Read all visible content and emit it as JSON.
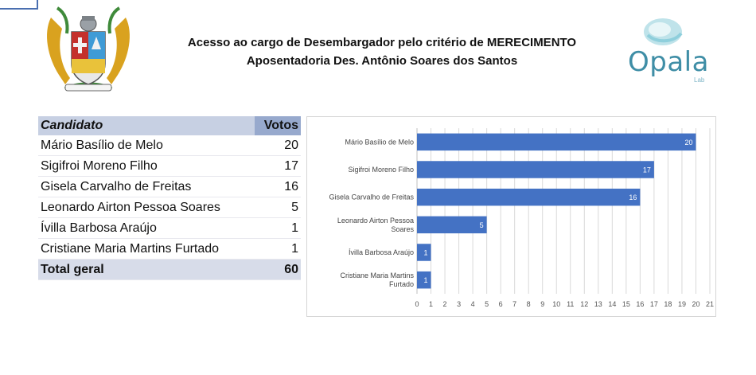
{
  "header": {
    "title_line1": "Acesso ao cargo de Desembargador pelo critério de MERECIMENTO",
    "title_line2": "Aposentadoria Des. Antônio Soares dos Santos"
  },
  "logo": {
    "brand": "Opala",
    "brand_sub": "Lab",
    "crest_icon": "coat-of-arms-icon"
  },
  "colors": {
    "bar": "#4472c4",
    "table_header": "#c7d0e3",
    "table_header_votes": "#97a9cd",
    "brand": "#3f8ea6"
  },
  "table": {
    "col_candidate": "Candidato",
    "col_votes": "Votos",
    "rows": [
      {
        "name": "Mário Basílio de Melo",
        "votes": "20"
      },
      {
        "name": "Sigifroi Moreno Filho",
        "votes": "17"
      },
      {
        "name": "Gisela Carvalho de Freitas",
        "votes": "16"
      },
      {
        "name": "Leonardo Airton Pessoa Soares",
        "votes": "5"
      },
      {
        "name": "Ívilla Barbosa Araújo",
        "votes": "1"
      },
      {
        "name": "Cristiane Maria Martins Furtado",
        "votes": "1"
      }
    ],
    "total_label": "Total geral",
    "total_value": "60"
  },
  "chart_data": {
    "type": "bar",
    "orientation": "horizontal",
    "categories": [
      "Mário Basílio de Melo",
      "Sigifroi Moreno Filho",
      "Gisela Carvalho de Freitas",
      "Leonardo Airton Pessoa Soares",
      "Ívilla Barbosa Araújo",
      "Cristiane Maria Martins Furtado"
    ],
    "values": [
      20,
      17,
      16,
      5,
      1,
      1
    ],
    "title": "",
    "xlabel": "",
    "ylabel": "",
    "xlim": [
      0,
      21
    ],
    "x_ticks": [
      0,
      1,
      2,
      3,
      4,
      5,
      6,
      7,
      8,
      9,
      10,
      11,
      12,
      13,
      14,
      15,
      16,
      17,
      18,
      19,
      20,
      21
    ],
    "grid": true,
    "data_labels": true
  }
}
